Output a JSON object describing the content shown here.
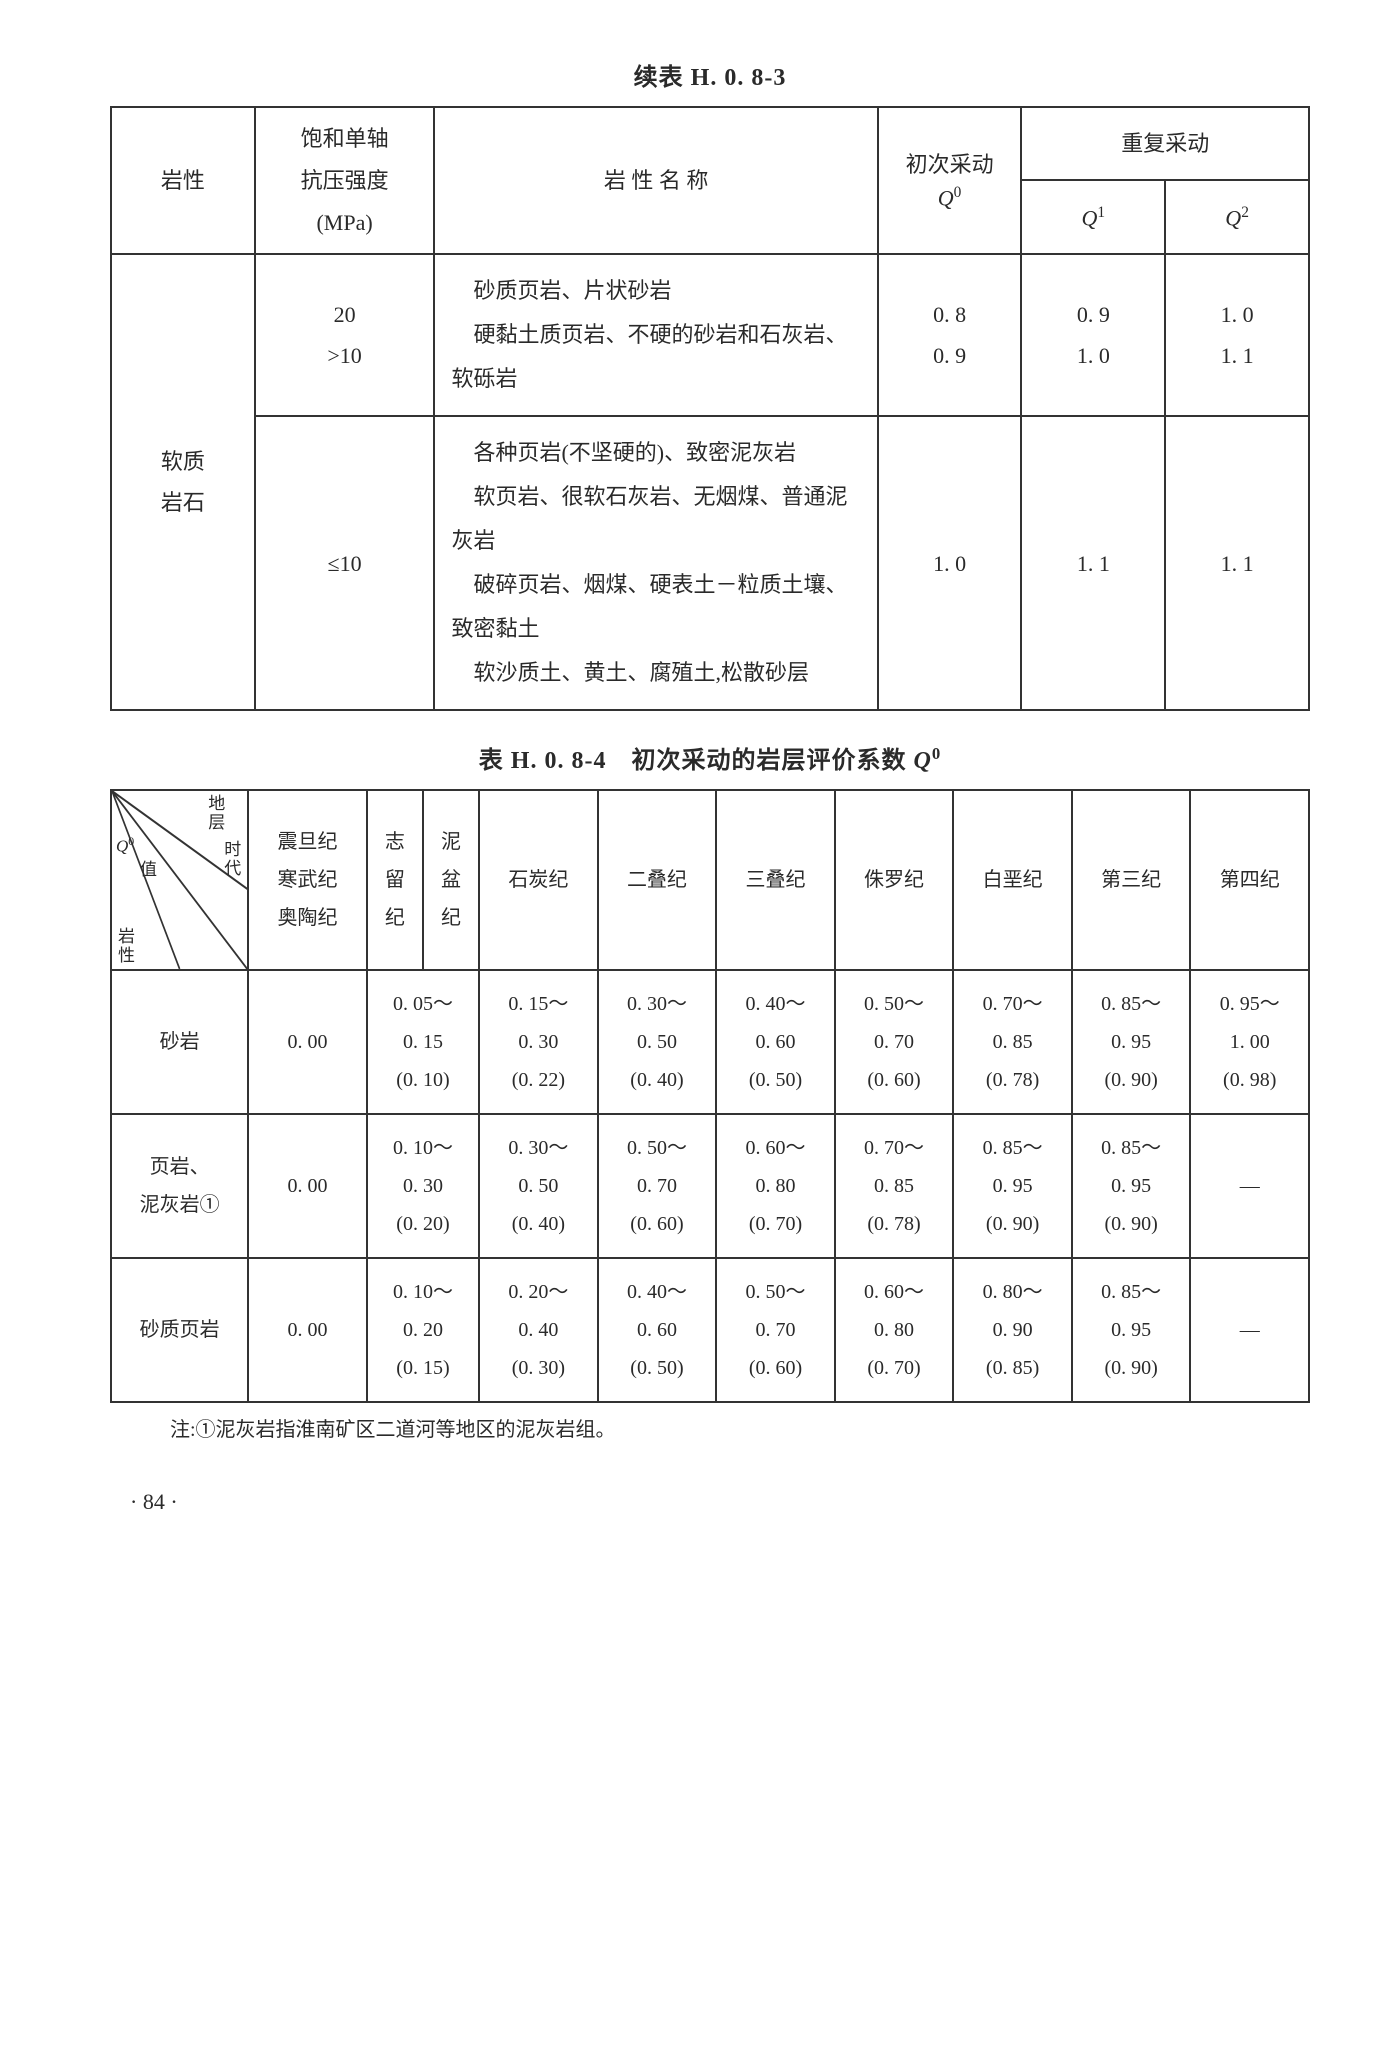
{
  "table1": {
    "title": "续表 H. 0. 8-3",
    "headers": {
      "rock_type": "岩性",
      "strength": "饱和单轴\n抗压强度\n(MPa)",
      "rock_name": "岩 性 名 称",
      "first_mining": "初次采动",
      "first_mining_sym": "Q",
      "first_mining_sup": "0",
      "repeat_mining": "重复采动",
      "q1": "Q",
      "q1_sup": "1",
      "q2": "Q",
      "q2_sup": "2"
    },
    "rows": [
      {
        "rock_type": "软质\n岩石",
        "strength_a": "20",
        "strength_b": ">10",
        "desc": "　砂质页岩、片状砂岩\n　硬黏土质页岩、不硬的砂岩和石灰岩、软砾岩",
        "q0_a": "0. 8",
        "q0_b": "0. 9",
        "q1_a": "0. 9",
        "q1_b": "1. 0",
        "q2_a": "1. 0",
        "q2_b": "1. 1"
      },
      {
        "strength": "≤10",
        "desc": "　各种页岩(不坚硬的)、致密泥灰岩\n　软页岩、很软石灰岩、无烟煤、普通泥灰岩\n　破碎页岩、烟煤、硬表土－粒质土壤、致密黏土\n　软沙质土、黄土、腐殖土,松散砂层",
        "q0": "1. 0",
        "q1": "1. 1",
        "q2": "1. 1"
      }
    ]
  },
  "table2": {
    "title_prefix": "表 H. 0. 8-4　初次采动的岩层评价系数 ",
    "title_sym": "Q",
    "title_sup": "0",
    "diag": {
      "top": "地\n层",
      "right": "时\n代",
      "left_q": "Q",
      "left_q_sup": "0",
      "left_val": "值",
      "bottom": "岩\n性"
    },
    "era_headers": [
      "震旦纪\n寒武纪\n奥陶纪",
      "志\n留\n纪",
      "泥\n盆\n纪",
      "石炭纪",
      "二叠纪",
      "三叠纪",
      "侏罗纪",
      "白垩纪",
      "第三纪",
      "第四纪"
    ],
    "rows": [
      {
        "label": "砂岩",
        "cells": [
          "0. 00",
          "0. 05～\n0. 15\n(0. 10)",
          "0. 15～\n0. 30\n(0. 22)",
          "0. 30～\n0. 50\n(0. 40)",
          "0. 40～\n0. 60\n(0. 50)",
          "0. 50～\n0. 70\n(0. 60)",
          "0. 70～\n0. 85\n(0. 78)",
          "0. 85～\n0. 95\n(0. 90)",
          "0. 95～\n1. 00\n(0. 98)"
        ]
      },
      {
        "label": "页岩、\n泥灰岩①",
        "cells": [
          "0. 00",
          "0. 10～\n0. 30\n(0. 20)",
          "0. 30～\n0. 50\n(0. 40)",
          "0. 50～\n0. 70\n(0. 60)",
          "0. 60～\n0. 80\n(0. 70)",
          "0. 70～\n0. 85\n(0. 78)",
          "0. 85～\n0. 95\n(0. 90)",
          "0. 85～\n0. 95\n(0. 90)",
          "—"
        ]
      },
      {
        "label": "砂质页岩",
        "cells": [
          "0. 00",
          "0. 10～\n0. 20\n(0. 15)",
          "0. 20～\n0. 40\n(0. 30)",
          "0. 40～\n0. 60\n(0. 50)",
          "0. 50～\n0. 70\n(0. 60)",
          "0. 60～\n0. 80\n(0. 70)",
          "0. 80～\n0. 90\n(0. 85)",
          "0. 85～\n0. 95\n(0. 90)",
          "—"
        ]
      }
    ]
  },
  "note": "注:①泥灰岩指淮南矿区二道河等地区的泥灰岩组。",
  "pagenum": "· 84 ·"
}
